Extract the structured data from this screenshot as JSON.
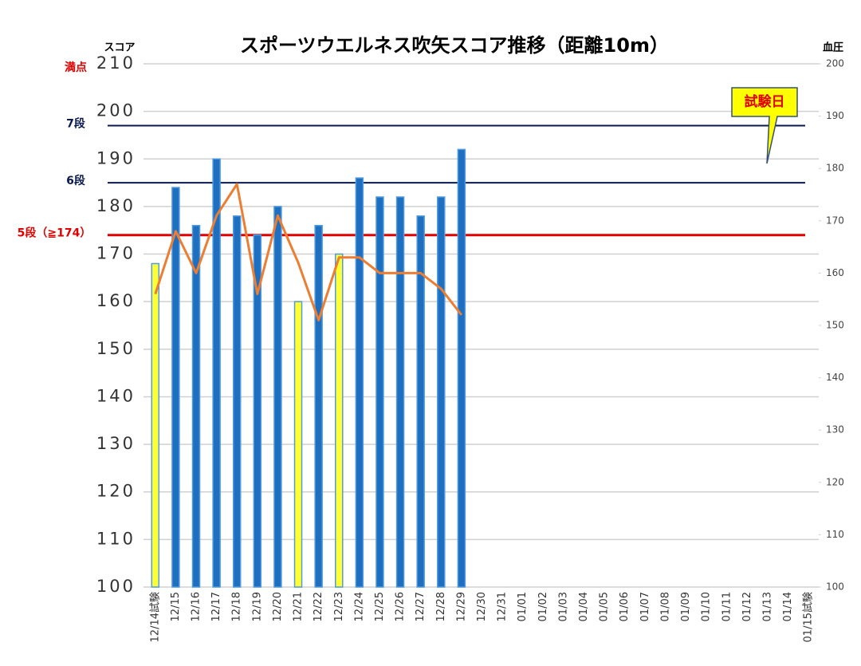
{
  "chart_data": {
    "type": "bar",
    "title": "スポーツウエルネス吹矢スコア推移（距離10m）",
    "y_label": "スコア",
    "y2_label": "血圧",
    "categories": [
      "12/14試験",
      "12/15",
      "12/16",
      "12/17",
      "12/18",
      "12/19",
      "12/20",
      "12/21",
      "12/22",
      "12/23",
      "12/24",
      "12/25",
      "12/26",
      "12/27",
      "12/28",
      "12/29",
      "12/30",
      "12/31",
      "01/01",
      "01/02",
      "01/03",
      "01/04",
      "01/05",
      "01/06",
      "01/07",
      "01/08",
      "01/09",
      "01/10",
      "01/11",
      "01/12",
      "01/13",
      "01/14",
      "01/15試験"
    ],
    "series": [
      {
        "type": "bar",
        "values": [
          168,
          184,
          176,
          190,
          178,
          174,
          180,
          160,
          176,
          170,
          186,
          182,
          182,
          178,
          182,
          192,
          null,
          null,
          null,
          null,
          null,
          null,
          null,
          null,
          null,
          null,
          null,
          null,
          null,
          null,
          null,
          null,
          null
        ],
        "colors": [
          "#ffff33",
          "#1f6fc0",
          "#1f6fc0",
          "#1f6fc0",
          "#1f6fc0",
          "#1f6fc0",
          "#1f6fc0",
          "#ffff33",
          "#1f6fc0",
          "#ffff33",
          "#1f6fc0",
          "#1f6fc0",
          "#1f6fc0",
          "#1f6fc0",
          "#1f6fc0",
          "#1f6fc0",
          "#1f6fc0",
          "#1f6fc0",
          "#1f6fc0",
          "#1f6fc0",
          "#1f6fc0",
          "#1f6fc0",
          "#1f6fc0",
          "#1f6fc0",
          "#1f6fc0",
          "#1f6fc0",
          "#1f6fc0",
          "#1f6fc0",
          "#1f6fc0",
          "#1f6fc0",
          "#1f6fc0",
          "#1f6fc0",
          "#ffff33"
        ]
      },
      {
        "type": "line",
        "axis": "y2",
        "color": "#ed7d31",
        "values": [
          156,
          168,
          160,
          171,
          177,
          156,
          171,
          162,
          151,
          163,
          163,
          160,
          160,
          160,
          157,
          152,
          null,
          null,
          null,
          null,
          null,
          null,
          null,
          null,
          null,
          null,
          null,
          null,
          null,
          null,
          null,
          null,
          null
        ]
      }
    ],
    "ylim": [
      100,
      210
    ],
    "yticks": [
      100,
      110,
      120,
      130,
      140,
      150,
      160,
      170,
      180,
      190,
      200,
      210
    ],
    "y2lim": [
      100,
      200
    ],
    "y2ticks": [
      100,
      110,
      120,
      130,
      140,
      150,
      160,
      170,
      180,
      190,
      200
    ],
    "grid": true,
    "reference_lines": [
      {
        "label": "満点",
        "value": 210,
        "color": "#e00000",
        "line": false
      },
      {
        "label": "7段",
        "value": 197,
        "color": "#0a1a50",
        "line": true
      },
      {
        "label": "6段",
        "value": 185,
        "color": "#0a1a50",
        "line": true
      },
      {
        "label": "5段（≧174）",
        "value": 174,
        "color": "#e00000",
        "line": true
      }
    ],
    "callout": "試験日"
  }
}
